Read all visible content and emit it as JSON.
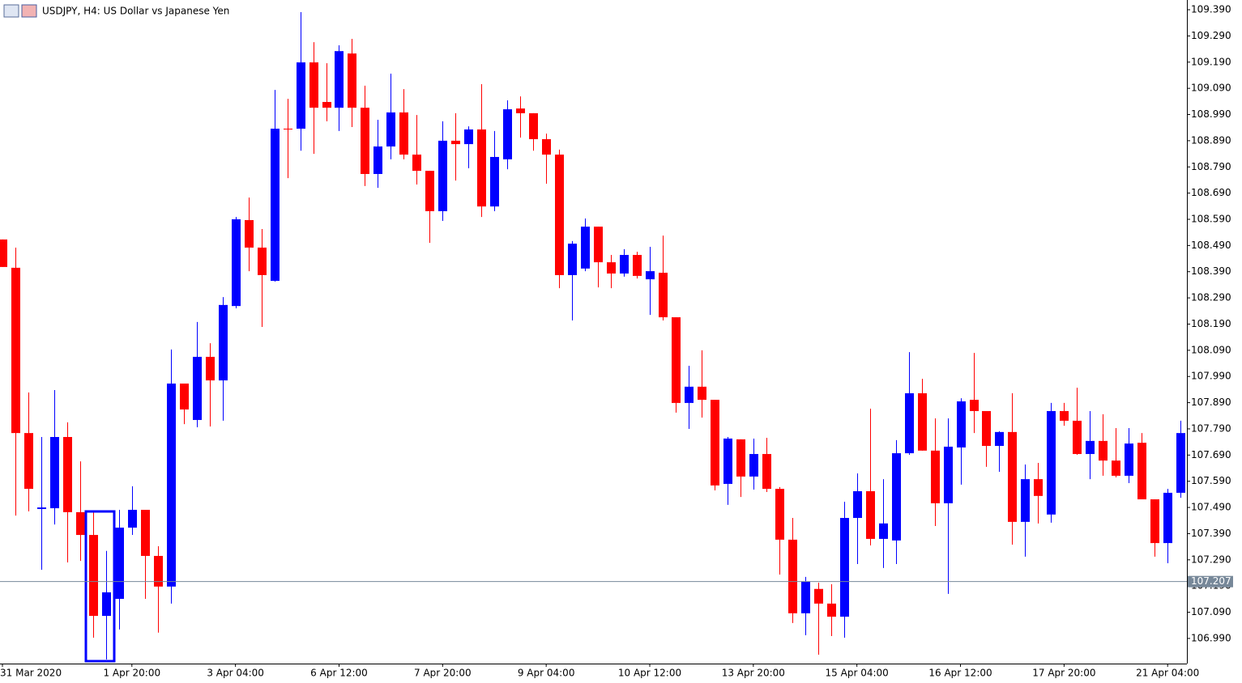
{
  "chart_data": {
    "type": "candlestick",
    "title": "USDJPY, H4:  US Dollar vs Japanese Yen",
    "up_color": "#0000ff",
    "down_color": "#ff0000",
    "grid": false,
    "current_price": 107.207,
    "current_price_color": "#778899",
    "categories": [
      "31 Mar 2020",
      null,
      null,
      null,
      null,
      null,
      null,
      null,
      null,
      null,
      "1 Apr 20:00",
      null,
      null,
      null,
      null,
      null,
      null,
      null,
      "3 Apr 04:00",
      null,
      null,
      null,
      null,
      null,
      null,
      null,
      "6 Apr 12:00",
      null,
      null,
      null,
      null,
      null,
      null,
      null,
      "7 Apr 20:00",
      null,
      null,
      null,
      null,
      null,
      null,
      null,
      "9 Apr 04:00",
      null,
      null,
      null,
      null,
      null,
      null,
      null,
      "10 Apr 12:00",
      null,
      null,
      null,
      null,
      null,
      null,
      null,
      "13 Apr 20:00",
      null,
      null,
      null,
      null,
      null,
      null,
      null,
      "15 Apr 04:00",
      null,
      null,
      null,
      null,
      null,
      null,
      null,
      "16 Apr 12:00",
      null,
      null,
      null,
      null,
      null,
      null,
      null,
      "17 Apr 20:00",
      null,
      null,
      null,
      null,
      null,
      null,
      null,
      "21 Apr 04:00",
      null
    ],
    "open": [
      108.513,
      108.405,
      107.774,
      107.484,
      107.487,
      107.759,
      107.472,
      107.385,
      107.076,
      107.141,
      107.413,
      107.481,
      107.305,
      107.188,
      107.963,
      107.824,
      108.065,
      107.975,
      108.259,
      108.587,
      108.482,
      108.355,
      108.936,
      108.936,
      109.189,
      109.038,
      109.016,
      109.223,
      109.016,
      108.763,
      108.868,
      108.998,
      108.837,
      108.775,
      108.621,
      108.89,
      108.877,
      108.933,
      108.639,
      108.819,
      109.013,
      108.995,
      108.896,
      108.837,
      108.377,
      108.402,
      108.562,
      108.426,
      108.383,
      108.454,
      108.361,
      108.386,
      108.216,
      107.889,
      107.951,
      107.901,
      107.58,
      107.75,
      107.608,
      107.694,
      107.561,
      107.367,
      107.086,
      107.179,
      107.123,
      107.073,
      107.45,
      107.552,
      107.37,
      107.364,
      107.697,
      107.926,
      107.707,
      107.506,
      107.719,
      107.901,
      107.858,
      107.725,
      107.778,
      107.435,
      107.598,
      107.463,
      107.858,
      107.821,
      107.694,
      107.744,
      107.669,
      107.611,
      107.737,
      107.521,
      107.354,
      107.546
    ],
    "high": [
      108.513,
      108.482,
      107.929,
      107.759,
      107.938,
      107.815,
      107.666,
      107.472,
      107.324,
      107.481,
      107.571,
      107.481,
      107.342,
      108.093,
      107.963,
      108.198,
      108.117,
      108.293,
      108.599,
      108.673,
      108.553,
      109.084,
      109.05,
      109.381,
      109.266,
      109.186,
      109.254,
      109.279,
      109.1,
      108.97,
      109.146,
      109.087,
      108.988,
      108.775,
      108.964,
      108.995,
      108.945,
      109.106,
      108.927,
      109.044,
      109.059,
      108.995,
      108.917,
      108.856,
      108.507,
      108.593,
      108.562,
      108.454,
      108.476,
      108.466,
      108.485,
      108.528,
      108.216,
      108.031,
      108.09,
      107.901,
      107.759,
      107.75,
      107.753,
      107.756,
      107.568,
      107.45,
      107.225,
      107.203,
      107.197,
      107.512,
      107.62,
      107.867,
      107.598,
      107.747,
      108.083,
      107.981,
      107.83,
      107.83,
      107.907,
      108.08,
      107.858,
      107.781,
      107.926,
      107.654,
      107.66,
      107.889,
      107.889,
      107.947,
      107.858,
      107.846,
      107.793,
      107.793,
      107.774,
      107.521,
      107.561,
      107.821
    ],
    "low": [
      108.408,
      107.459,
      107.475,
      107.252,
      107.425,
      107.28,
      107.286,
      106.993,
      106.91,
      107.024,
      107.385,
      107.141,
      107.012,
      107.123,
      107.808,
      107.796,
      107.799,
      107.821,
      108.25,
      108.392,
      108.179,
      108.352,
      108.747,
      108.852,
      108.84,
      108.964,
      108.927,
      108.942,
      108.717,
      108.71,
      108.819,
      108.819,
      108.723,
      108.5,
      108.584,
      108.738,
      108.785,
      108.599,
      108.621,
      108.781,
      108.902,
      108.852,
      108.726,
      108.327,
      108.204,
      108.392,
      108.33,
      108.327,
      108.371,
      108.364,
      108.225,
      108.204,
      107.852,
      107.79,
      107.833,
      107.555,
      107.5,
      107.53,
      107.558,
      107.549,
      107.234,
      107.049,
      107.002,
      106.928,
      106.999,
      106.993,
      107.274,
      107.345,
      107.259,
      107.274,
      107.691,
      107.707,
      107.419,
      107.16,
      107.577,
      107.774,
      107.645,
      107.626,
      107.348,
      107.302,
      107.429,
      107.432,
      107.802,
      107.691,
      107.598,
      107.611,
      107.605,
      107.583,
      107.521,
      107.302,
      107.277,
      107.527
    ],
    "close": [
      108.408,
      107.774,
      107.561,
      107.49,
      107.759,
      107.472,
      107.385,
      107.076,
      107.166,
      107.413,
      107.481,
      107.305,
      107.188,
      107.963,
      107.864,
      108.065,
      107.975,
      108.263,
      108.59,
      108.482,
      108.377,
      108.936,
      108.933,
      109.189,
      109.016,
      109.016,
      109.232,
      109.016,
      108.763,
      108.868,
      108.998,
      108.837,
      108.775,
      108.621,
      108.89,
      108.877,
      108.933,
      108.639,
      108.828,
      109.01,
      108.995,
      108.896,
      108.837,
      108.377,
      108.497,
      108.562,
      108.426,
      108.383,
      108.454,
      108.374,
      108.392,
      108.216,
      107.889,
      107.951,
      107.901,
      107.574,
      107.753,
      107.608,
      107.694,
      107.561,
      107.367,
      107.086,
      107.206,
      107.123,
      107.073,
      107.45,
      107.552,
      107.37,
      107.429,
      107.697,
      107.926,
      107.707,
      107.506,
      107.722,
      107.895,
      107.858,
      107.725,
      107.778,
      107.435,
      107.598,
      107.534,
      107.858,
      107.821,
      107.694,
      107.744,
      107.669,
      107.611,
      107.734,
      107.521,
      107.354,
      107.546,
      107.774
    ],
    "ylim": [
      106.894,
      109.421
    ],
    "yticks": [
      {
        "value": 109.39,
        "label": "109.390"
      },
      {
        "value": 109.29,
        "label": "109.290"
      },
      {
        "value": 109.19,
        "label": "109.190"
      },
      {
        "value": 109.09,
        "label": "109.090"
      },
      {
        "value": 108.99,
        "label": "108.990"
      },
      {
        "value": 108.89,
        "label": "108.890"
      },
      {
        "value": 108.79,
        "label": "108.790"
      },
      {
        "value": 108.69,
        "label": "108.690"
      },
      {
        "value": 108.59,
        "label": "108.590"
      },
      {
        "value": 108.49,
        "label": "108.490"
      },
      {
        "value": 108.39,
        "label": "108.390"
      },
      {
        "value": 108.29,
        "label": "108.290"
      },
      {
        "value": 108.19,
        "label": "108.190"
      },
      {
        "value": 108.09,
        "label": "108.090"
      },
      {
        "value": 107.99,
        "label": "107.990"
      },
      {
        "value": 107.89,
        "label": "107.890"
      },
      {
        "value": 107.79,
        "label": "107.790"
      },
      {
        "value": 107.69,
        "label": "107.690"
      },
      {
        "value": 107.59,
        "label": "107.590"
      },
      {
        "value": 107.49,
        "label": "107.490"
      },
      {
        "value": 107.39,
        "label": "107.390"
      },
      {
        "value": 107.29,
        "label": "107.290"
      },
      {
        "value": 107.19,
        "label": "107.190"
      },
      {
        "value": 107.09,
        "label": "107.090"
      },
      {
        "value": 106.99,
        "label": "106.990"
      }
    ]
  }
}
